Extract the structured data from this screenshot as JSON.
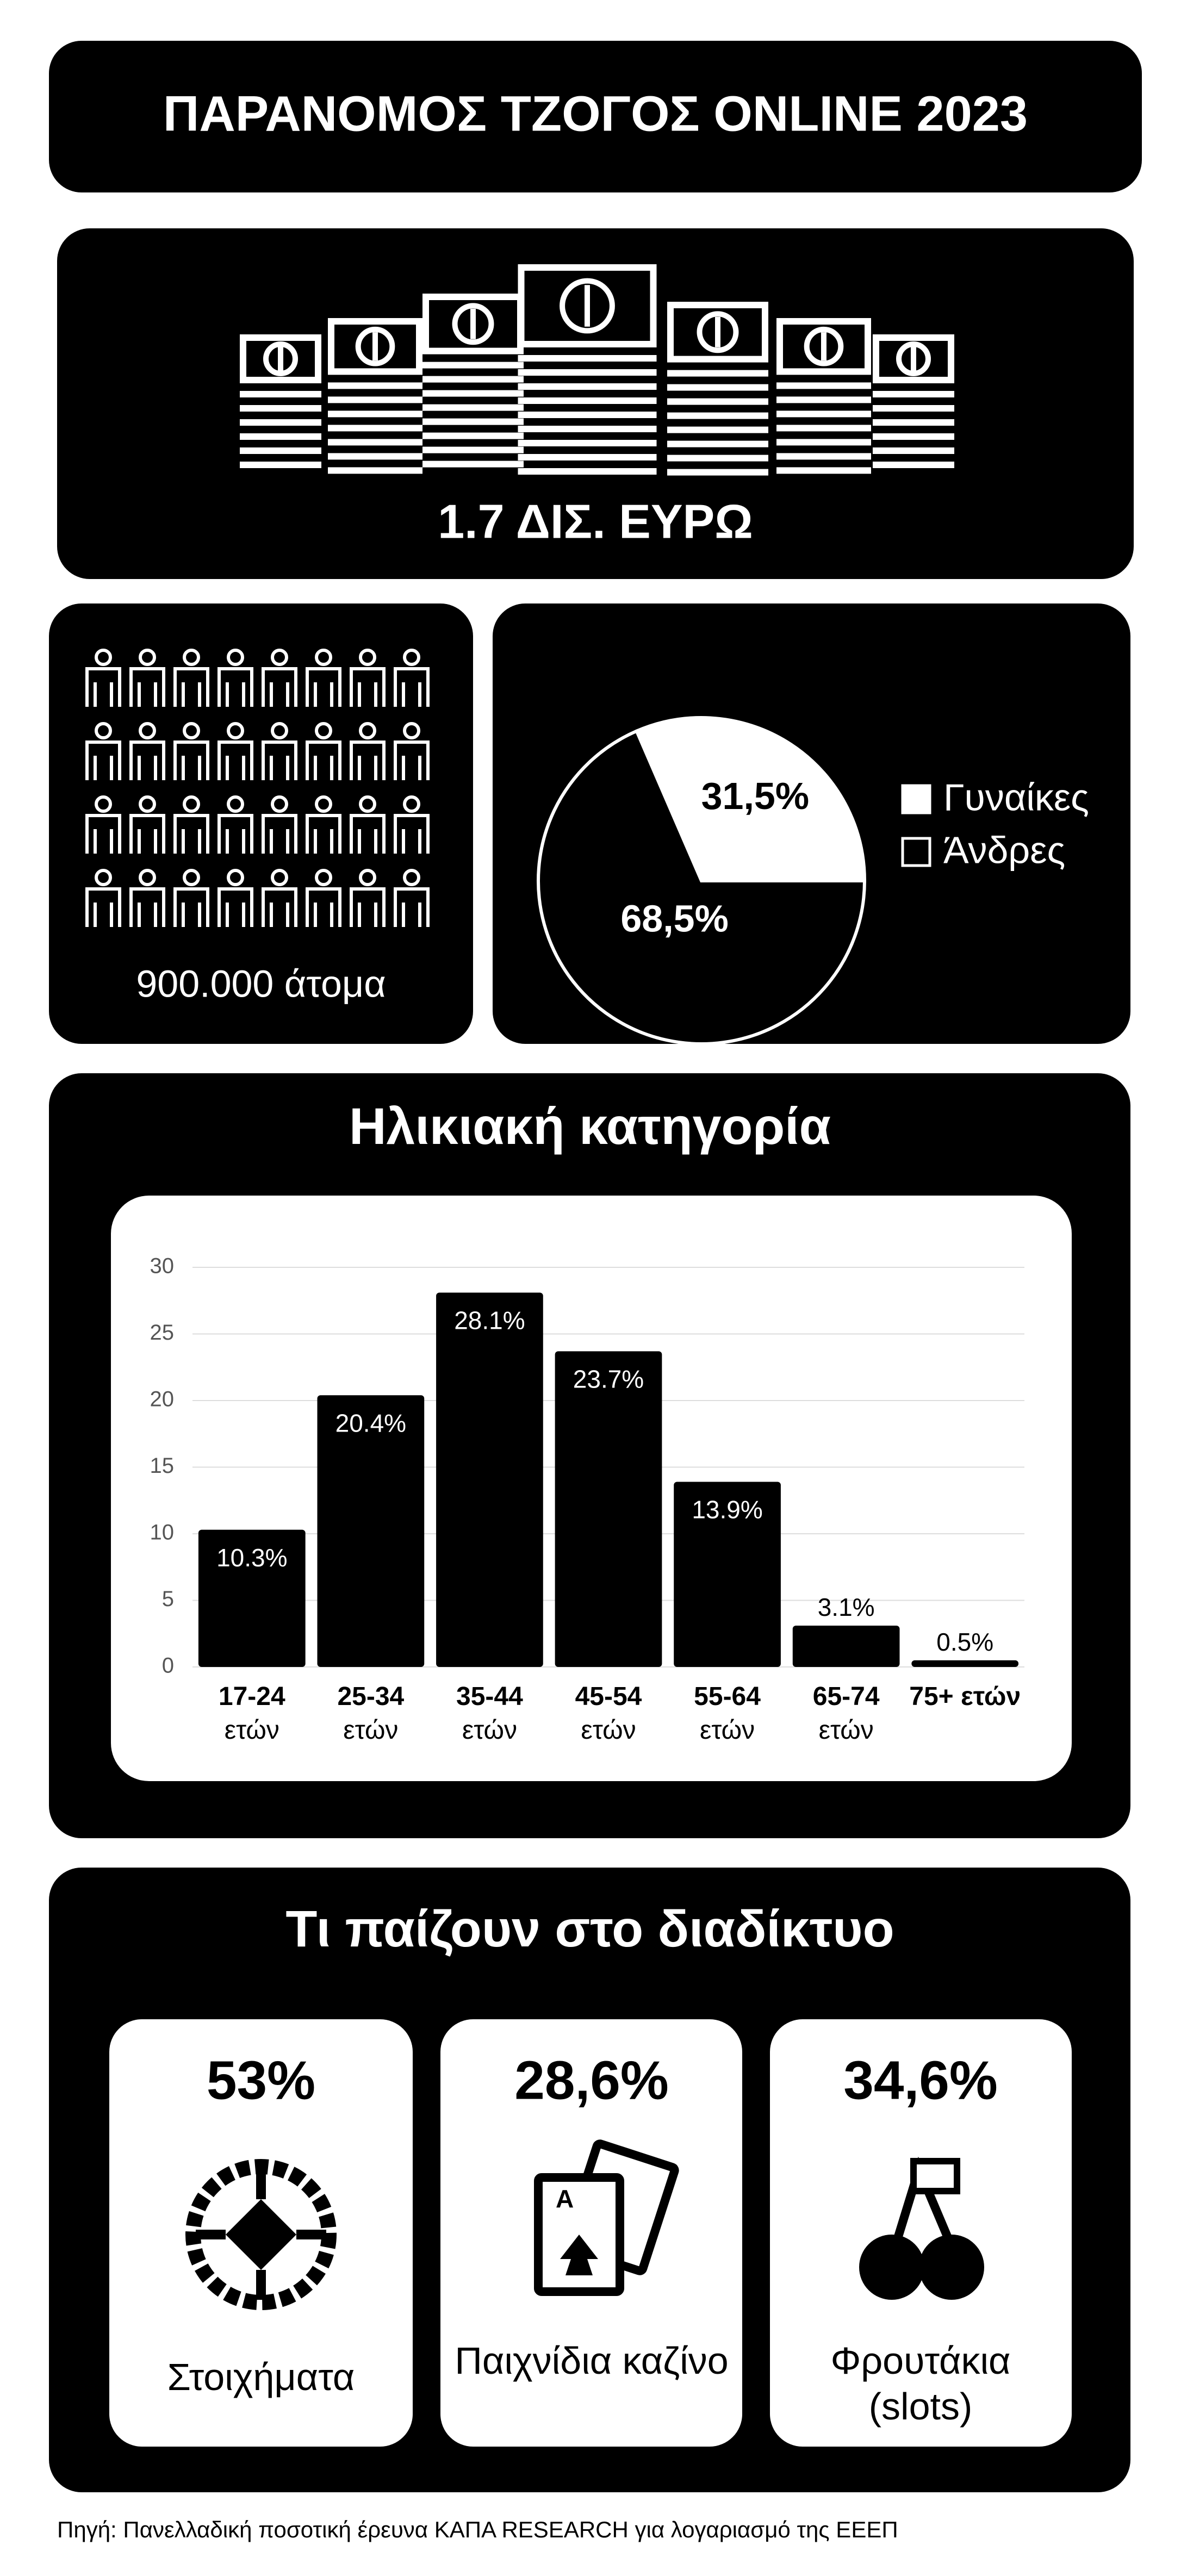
{
  "header": {
    "title": "ΠΑΡΑΝΟΜΟΣ ΤΖΟΓΟΣ ONLINE 2023"
  },
  "money": {
    "label": "1.7 ΔΙΣ. ΕΥΡΩ"
  },
  "people": {
    "label": "900.000 άτομα"
  },
  "chart_data": [
    {
      "type": "pie",
      "categories": [
        "Γυναίκες",
        "Άνδρες"
      ],
      "values": [
        31.5,
        68.5
      ],
      "value_labels": [
        "31,5%",
        "68,5%"
      ],
      "colors": [
        "#ffffff",
        "#000000"
      ]
    },
    {
      "type": "bar",
      "title": "Ηλικιακή κατηγορία",
      "categories": [
        "17-24 ετών",
        "25-34 ετών",
        "35-44 ετών",
        "45-54 ετών",
        "55-64 ετών",
        "65-74 ετών",
        "75+ ετών"
      ],
      "values": [
        10.3,
        20.4,
        28.1,
        23.7,
        13.9,
        3.1,
        0.5
      ],
      "value_labels": [
        "10.3%",
        "20.4%",
        "28.1%",
        "23.7%",
        "13.9%",
        "3.1%",
        "0.5%"
      ],
      "color": "#000000",
      "ylim": [
        0,
        30
      ],
      "yticks": [
        0,
        5,
        10,
        15,
        20,
        25,
        30
      ],
      "grid": true
    }
  ],
  "games": {
    "title": "Τι παίζουν στο διαδίκτυο",
    "items": [
      {
        "value": "53%",
        "label": "Στοιχήματα"
      },
      {
        "value": "28,6%",
        "label": "Παιχνίδια καζίνο"
      },
      {
        "value": "34,6%",
        "label": "Φρουτάκια (slots)"
      }
    ]
  },
  "source": "Πηγή: Πανελλαδική ποσοτική έρευνα ΚΑΠΑ RESEARCH για λογαριασμό της ΕΕΕΠ"
}
